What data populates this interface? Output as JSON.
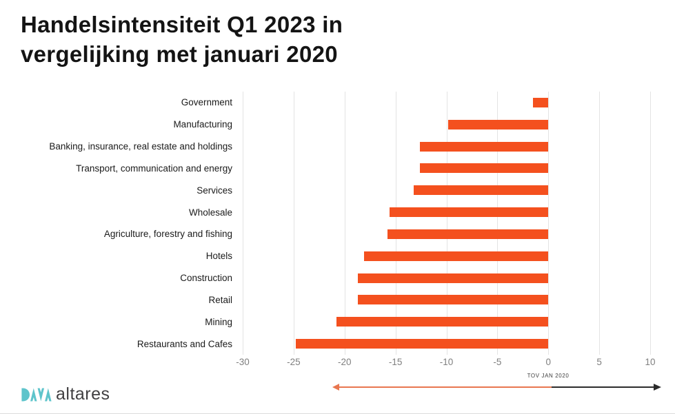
{
  "title_lines": [
    "Handelsintensiteit Q1 2023 in",
    "vergelijking met januari 2020"
  ],
  "chart_data": {
    "type": "bar",
    "orientation": "horizontal",
    "title": "Handelsintensiteit Q1 2023 in vergelijking met januari 2020",
    "categories": [
      "Government",
      "Manufacturing",
      "Banking, insurance, real estate and holdings",
      "Transport, communication and energy",
      "Services",
      "Wholesale",
      "Agriculture, forestry and fishing",
      "Hotels",
      "Construction",
      "Retail",
      "Mining",
      "Restaurants and Cafes"
    ],
    "values": [
      -1.5,
      -9.8,
      -12.6,
      -12.6,
      -13.2,
      -15.6,
      -15.8,
      -18.1,
      -18.7,
      -18.7,
      -20.8,
      -24.8
    ],
    "xlim": [
      -30,
      10
    ],
    "xticks": [
      -30,
      -25,
      -20,
      -15,
      -10,
      -5,
      0,
      5,
      10
    ],
    "grid": true,
    "legend_position": "none",
    "annotation": "TOV JAN 2020"
  },
  "footer": {
    "logo_text": "altares",
    "logo_icon": "altares-dava-mark"
  },
  "colors": {
    "bar": "#F4501E",
    "grid": "#E3E3E3",
    "tick_text": "#7F7F7F",
    "arrow_orange": "#E8764F",
    "arrow_black": "#2B2B2B",
    "logo_teal": "#5EC4CB",
    "logo_text": "#414042"
  }
}
